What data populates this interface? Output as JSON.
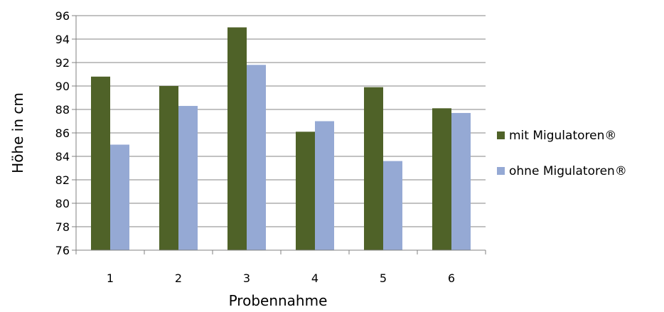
{
  "chart_data": {
    "type": "bar",
    "title": "",
    "xlabel": "Probennahme",
    "ylabel": "Höhe in cm",
    "categories": [
      "1",
      "2",
      "3",
      "4",
      "5",
      "6"
    ],
    "ylim": [
      76,
      96
    ],
    "yticks": [
      "96",
      "94",
      "92",
      "90",
      "88",
      "86",
      "84",
      "82",
      "80",
      "78",
      "76"
    ],
    "grid": true,
    "legend_position": "right",
    "series": [
      {
        "name": "mit Migulatoren®",
        "color": "#4f6228",
        "values": [
          90.8,
          90.0,
          95.0,
          86.1,
          89.9,
          88.1
        ]
      },
      {
        "name": "ohne Migulatoren®",
        "color": "#95a9d4",
        "values": [
          85.0,
          88.3,
          91.8,
          87.0,
          83.6,
          87.7
        ]
      }
    ]
  }
}
